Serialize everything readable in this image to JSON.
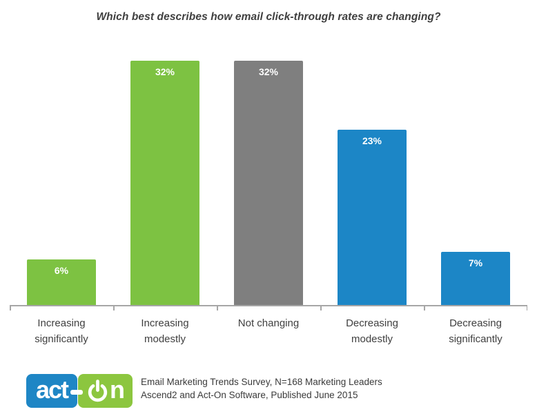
{
  "title": "Which best describes how email click-through rates are changing?",
  "chart_data": {
    "type": "bar",
    "title": "Which best describes how email click-through rates are changing?",
    "categories": [
      "Increasing significantly",
      "Increasing modestly",
      "Not changing",
      "Decreasing modestly",
      "Decreasing significantly"
    ],
    "values": [
      6,
      32,
      32,
      23,
      7
    ],
    "unit": "%",
    "xlabel": "",
    "ylabel": "",
    "ylim": [
      0,
      34
    ],
    "grid": false,
    "legend": "none",
    "points": [
      {
        "label": "Increasing significantly",
        "value_label": "6%",
        "pct": 6,
        "color": "#7dc242"
      },
      {
        "label": "Increasing modestly",
        "value_label": "32%",
        "pct": 32,
        "color": "#7dc242"
      },
      {
        "label": "Not changing",
        "value_label": "32%",
        "pct": 32,
        "color": "#7f7f7f"
      },
      {
        "label": "Decreasing modestly",
        "value_label": "23%",
        "pct": 23,
        "color": "#1c86c6"
      },
      {
        "label": "Decreasing significantly",
        "value_label": "7%",
        "pct": 7,
        "color": "#1c86c6"
      }
    ],
    "colors": {
      "increasing": "#7dc242",
      "neutral": "#7f7f7f",
      "decreasing": "#1c86c6",
      "axis": "#a6a6a6"
    }
  },
  "footer": {
    "logo": {
      "text_left": "act",
      "text_right": "n",
      "blue": "#1e86c5",
      "green": "#8cc63f"
    },
    "caption_line1": "Email Marketing Trends Survey, N=168 Marketing Leaders",
    "caption_line2": "Ascend2 and Act-On Software, Published June 2015"
  }
}
